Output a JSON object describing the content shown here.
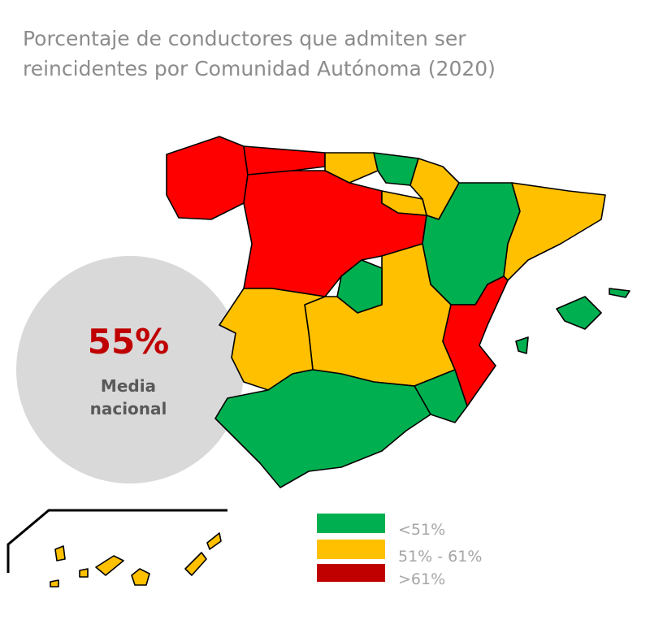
{
  "title": [
    "Porcentaje de conductores que admiten ser",
    "reincidentes por Comunidad Autónoma (2020)"
  ],
  "national_average": {
    "value": "55%",
    "label": [
      "Media",
      "nacional"
    ]
  },
  "legend": [
    "<51%",
    "51% - 61%",
    ">61%"
  ]
}
